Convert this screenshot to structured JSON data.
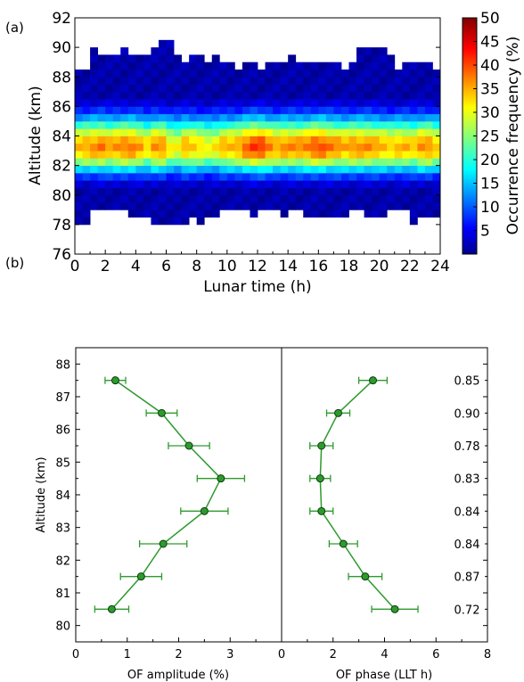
{
  "panel_labels": {
    "a": "(a)",
    "b": "(b)"
  },
  "chart_data": [
    {
      "type": "heatmap",
      "panel": "(a)",
      "xlabel": "Lunar time (h)",
      "ylabel": "Altitude (km)",
      "colorbar_label": "Occurrence frequency (%)",
      "xlim": [
        0,
        24
      ],
      "ylim": [
        76,
        92
      ],
      "x_ticks": [
        "0",
        "2",
        "4",
        "6",
        "8",
        "10",
        "12",
        "14",
        "16",
        "18",
        "20",
        "22",
        "24"
      ],
      "y_ticks": [
        "76",
        "78",
        "80",
        "82",
        "84",
        "86",
        "88",
        "90",
        "92"
      ],
      "colorbar_ticks": [
        "5",
        "10",
        "15",
        "20",
        "25",
        "30",
        "35",
        "40",
        "45",
        "50"
      ],
      "colorbar_range": [
        0,
        50
      ],
      "colormap": "jet",
      "bin_width_h": 0.5,
      "bin_height_km": 0.5,
      "peak_altitude_km": 83,
      "upper_edge_km": [
        88.5,
        88.5,
        90,
        89.5,
        89.5,
        89.5,
        90,
        89.5,
        89.5,
        89.5,
        90,
        90.5,
        90.5,
        89.5,
        89,
        89.5,
        89.5,
        89,
        89.5,
        89,
        89,
        88.5,
        89,
        89,
        88.5,
        89,
        89,
        89,
        89.5,
        89,
        89,
        89,
        89,
        89,
        89,
        88.5,
        89,
        90,
        90,
        90,
        90,
        89.5,
        88.5,
        89,
        89,
        89,
        89,
        88.5
      ],
      "lower_edge_km": [
        78,
        78,
        79,
        79,
        79,
        79,
        79,
        78.5,
        78.5,
        78.5,
        78,
        78,
        78,
        78,
        78,
        78.5,
        78,
        78.5,
        78.5,
        79,
        79,
        79,
        79,
        78.5,
        79,
        79,
        79,
        78.5,
        79,
        79,
        78.5,
        78.5,
        78.5,
        78.5,
        78.5,
        78.5,
        79,
        79,
        78.5,
        78.5,
        78.5,
        79,
        79,
        79,
        78,
        78.5,
        78.5,
        78.5
      ],
      "peak_occurrence_pct": [
        35,
        36,
        37,
        38,
        36,
        37,
        38,
        38,
        36,
        33,
        37,
        37,
        32,
        31,
        35,
        34,
        33,
        31,
        32,
        35,
        35,
        36,
        39,
        41,
        41,
        38,
        36,
        37,
        37,
        37,
        38,
        40,
        40,
        38,
        37,
        36,
        37,
        37,
        37,
        36,
        35,
        34,
        35,
        35,
        34,
        37,
        37,
        34
      ]
    },
    {
      "type": "scatter",
      "panel": "(b)",
      "xlabel": "OF amplitude (%)",
      "ylabel": "Altitude (km)",
      "xlim": [
        0,
        4
      ],
      "ylim": [
        79.5,
        88.5
      ],
      "x_ticks": [
        "0",
        "1",
        "2",
        "3"
      ],
      "y_ticks": [
        "80",
        "81",
        "82",
        "83",
        "84",
        "85",
        "86",
        "87",
        "88"
      ],
      "series": [
        {
          "altitude": [
            80.5,
            81.5,
            82.5,
            83.5,
            84.5,
            85.5,
            86.5,
            87.5
          ],
          "values": [
            0.7,
            1.27,
            1.7,
            2.5,
            2.82,
            2.2,
            1.67,
            0.77
          ],
          "error": [
            0.33,
            0.4,
            0.46,
            0.46,
            0.46,
            0.4,
            0.3,
            0.2
          ]
        }
      ],
      "color": "#2e9a2e"
    },
    {
      "type": "scatter",
      "panel": "(b)",
      "xlabel": "OF phase (LLT h)",
      "xlim": [
        0,
        8
      ],
      "x_ticks": [
        "0",
        "2",
        "4",
        "6",
        "8"
      ],
      "series": [
        {
          "altitude": [
            80.5,
            81.5,
            82.5,
            83.5,
            84.5,
            85.5,
            86.5,
            87.5
          ],
          "values": [
            4.4,
            3.25,
            2.4,
            1.55,
            1.5,
            1.55,
            2.2,
            3.55
          ],
          "error": [
            0.9,
            0.65,
            0.55,
            0.45,
            0.4,
            0.45,
            0.45,
            0.55
          ]
        }
      ],
      "color": "#2e9a2e",
      "annotations": [
        "0.72",
        "0.87",
        "0.84",
        "0.84",
        "0.83",
        "0.78",
        "0.90",
        "0.85"
      ]
    }
  ]
}
